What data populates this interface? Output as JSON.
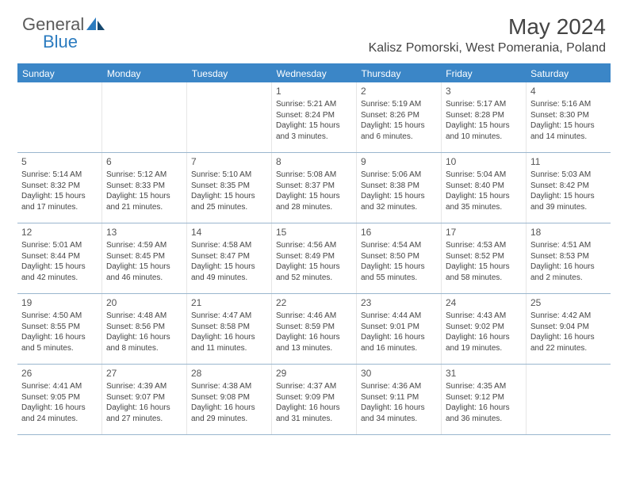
{
  "logo": {
    "general": "General",
    "blue": "Blue"
  },
  "header": {
    "month_title": "May 2024",
    "location": "Kalisz Pomorski, West Pomerania, Poland"
  },
  "colors": {
    "header_bar": "#3b86c7",
    "header_text": "#ffffff",
    "row_divider": "#9ab6ce",
    "logo_gray": "#5b5b5b",
    "logo_blue": "#2b7bbf",
    "background": "#ffffff"
  },
  "weekdays": [
    "Sunday",
    "Monday",
    "Tuesday",
    "Wednesday",
    "Thursday",
    "Friday",
    "Saturday"
  ],
  "weeks": [
    [
      null,
      null,
      null,
      {
        "n": "1",
        "sr": "5:21 AM",
        "ss": "8:24 PM",
        "dl": "15 hours and 3 minutes."
      },
      {
        "n": "2",
        "sr": "5:19 AM",
        "ss": "8:26 PM",
        "dl": "15 hours and 6 minutes."
      },
      {
        "n": "3",
        "sr": "5:17 AM",
        "ss": "8:28 PM",
        "dl": "15 hours and 10 minutes."
      },
      {
        "n": "4",
        "sr": "5:16 AM",
        "ss": "8:30 PM",
        "dl": "15 hours and 14 minutes."
      }
    ],
    [
      {
        "n": "5",
        "sr": "5:14 AM",
        "ss": "8:32 PM",
        "dl": "15 hours and 17 minutes."
      },
      {
        "n": "6",
        "sr": "5:12 AM",
        "ss": "8:33 PM",
        "dl": "15 hours and 21 minutes."
      },
      {
        "n": "7",
        "sr": "5:10 AM",
        "ss": "8:35 PM",
        "dl": "15 hours and 25 minutes."
      },
      {
        "n": "8",
        "sr": "5:08 AM",
        "ss": "8:37 PM",
        "dl": "15 hours and 28 minutes."
      },
      {
        "n": "9",
        "sr": "5:06 AM",
        "ss": "8:38 PM",
        "dl": "15 hours and 32 minutes."
      },
      {
        "n": "10",
        "sr": "5:04 AM",
        "ss": "8:40 PM",
        "dl": "15 hours and 35 minutes."
      },
      {
        "n": "11",
        "sr": "5:03 AM",
        "ss": "8:42 PM",
        "dl": "15 hours and 39 minutes."
      }
    ],
    [
      {
        "n": "12",
        "sr": "5:01 AM",
        "ss": "8:44 PM",
        "dl": "15 hours and 42 minutes."
      },
      {
        "n": "13",
        "sr": "4:59 AM",
        "ss": "8:45 PM",
        "dl": "15 hours and 46 minutes."
      },
      {
        "n": "14",
        "sr": "4:58 AM",
        "ss": "8:47 PM",
        "dl": "15 hours and 49 minutes."
      },
      {
        "n": "15",
        "sr": "4:56 AM",
        "ss": "8:49 PM",
        "dl": "15 hours and 52 minutes."
      },
      {
        "n": "16",
        "sr": "4:54 AM",
        "ss": "8:50 PM",
        "dl": "15 hours and 55 minutes."
      },
      {
        "n": "17",
        "sr": "4:53 AM",
        "ss": "8:52 PM",
        "dl": "15 hours and 58 minutes."
      },
      {
        "n": "18",
        "sr": "4:51 AM",
        "ss": "8:53 PM",
        "dl": "16 hours and 2 minutes."
      }
    ],
    [
      {
        "n": "19",
        "sr": "4:50 AM",
        "ss": "8:55 PM",
        "dl": "16 hours and 5 minutes."
      },
      {
        "n": "20",
        "sr": "4:48 AM",
        "ss": "8:56 PM",
        "dl": "16 hours and 8 minutes."
      },
      {
        "n": "21",
        "sr": "4:47 AM",
        "ss": "8:58 PM",
        "dl": "16 hours and 11 minutes."
      },
      {
        "n": "22",
        "sr": "4:46 AM",
        "ss": "8:59 PM",
        "dl": "16 hours and 13 minutes."
      },
      {
        "n": "23",
        "sr": "4:44 AM",
        "ss": "9:01 PM",
        "dl": "16 hours and 16 minutes."
      },
      {
        "n": "24",
        "sr": "4:43 AM",
        "ss": "9:02 PM",
        "dl": "16 hours and 19 minutes."
      },
      {
        "n": "25",
        "sr": "4:42 AM",
        "ss": "9:04 PM",
        "dl": "16 hours and 22 minutes."
      }
    ],
    [
      {
        "n": "26",
        "sr": "4:41 AM",
        "ss": "9:05 PM",
        "dl": "16 hours and 24 minutes."
      },
      {
        "n": "27",
        "sr": "4:39 AM",
        "ss": "9:07 PM",
        "dl": "16 hours and 27 minutes."
      },
      {
        "n": "28",
        "sr": "4:38 AM",
        "ss": "9:08 PM",
        "dl": "16 hours and 29 minutes."
      },
      {
        "n": "29",
        "sr": "4:37 AM",
        "ss": "9:09 PM",
        "dl": "16 hours and 31 minutes."
      },
      {
        "n": "30",
        "sr": "4:36 AM",
        "ss": "9:11 PM",
        "dl": "16 hours and 34 minutes."
      },
      {
        "n": "31",
        "sr": "4:35 AM",
        "ss": "9:12 PM",
        "dl": "16 hours and 36 minutes."
      },
      null
    ]
  ],
  "labels": {
    "sunrise": "Sunrise:",
    "sunset": "Sunset:",
    "daylight": "Daylight:"
  }
}
